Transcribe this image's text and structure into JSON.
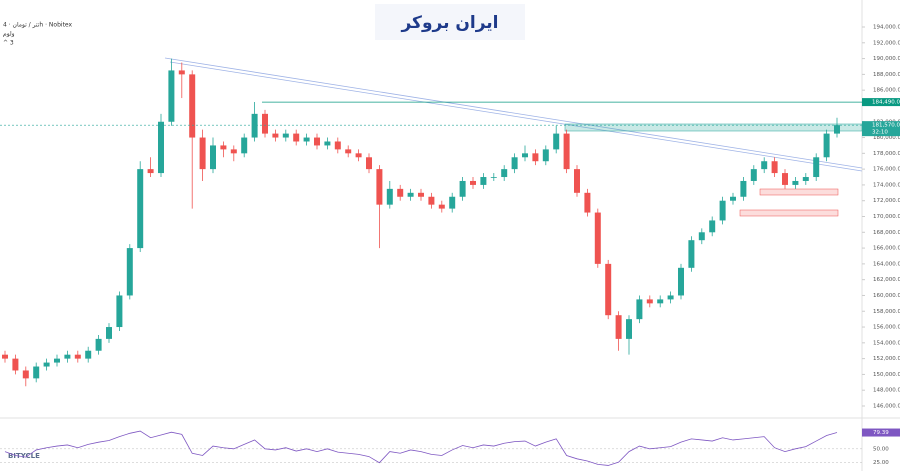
{
  "header": {
    "symbol": "تتر / تومان · 4h · Nobitex",
    "line2": "ولوم",
    "line3": "^ 3"
  },
  "watermark": "ایران بروکر",
  "footer_logo": "BITYCLE",
  "chart_data": {
    "type": "candlestick",
    "up_color": "#26a69a",
    "down_color": "#ef5350",
    "open": [
      152500,
      152000,
      150500,
      149500,
      151000,
      151500,
      152000,
      152500,
      152000,
      153000,
      154500,
      156000,
      160000,
      166000,
      176000,
      175500,
      182000,
      188500,
      188000,
      180000,
      176000,
      179000,
      178500,
      178000,
      180000,
      183000,
      180500,
      180000,
      180500,
      179500,
      180000,
      179000,
      179500,
      178500,
      178000,
      177500,
      176000,
      171500,
      173500,
      172500,
      173000,
      172500,
      171500,
      171000,
      172500,
      174500,
      174000,
      175000,
      175000,
      176000,
      177500,
      178000,
      177000,
      178500,
      180500,
      176000,
      173000,
      170500,
      164000,
      157500,
      154500,
      157000,
      159500,
      159000,
      159500,
      160000,
      163500,
      167000,
      168000,
      169500,
      172000,
      172500,
      174500,
      176000,
      177000,
      175500,
      174000,
      174500,
      175000,
      177500,
      180500
    ],
    "high": [
      153000,
      152500,
      151000,
      151500,
      152000,
      152500,
      153000,
      153000,
      153500,
      155000,
      156500,
      160500,
      166500,
      177000,
      177500,
      183000,
      190000,
      189500,
      188500,
      181000,
      180000,
      179500,
      179000,
      180500,
      184500,
      183500,
      181000,
      181000,
      181000,
      180500,
      180500,
      180000,
      180000,
      179000,
      178500,
      178000,
      176500,
      174500,
      174000,
      173500,
      173500,
      173000,
      172000,
      173000,
      175000,
      175000,
      175500,
      175500,
      176500,
      178000,
      179000,
      178500,
      179000,
      181500,
      181000,
      176500,
      173500,
      171000,
      164500,
      158000,
      157500,
      160000,
      160000,
      160000,
      160500,
      164000,
      167500,
      168500,
      170000,
      172500,
      173000,
      175000,
      176500,
      177500,
      177500,
      176000,
      175000,
      175500,
      178000,
      181000,
      182500
    ],
    "low": [
      151500,
      150000,
      148500,
      149000,
      150500,
      151000,
      151500,
      151500,
      151500,
      152500,
      154000,
      155500,
      159500,
      165500,
      175000,
      175000,
      181500,
      185000,
      171000,
      174500,
      175500,
      177500,
      177000,
      177500,
      179500,
      180000,
      179500,
      179500,
      179000,
      179000,
      178500,
      178500,
      178000,
      177500,
      177000,
      175500,
      166000,
      171000,
      172000,
      172000,
      172000,
      171000,
      170500,
      170500,
      172000,
      173500,
      173500,
      174500,
      174500,
      175500,
      177000,
      176500,
      176500,
      178000,
      175500,
      172500,
      170000,
      163500,
      157000,
      153000,
      152500,
      156500,
      158500,
      158500,
      159000,
      159500,
      163000,
      166500,
      167500,
      169000,
      171500,
      172000,
      174000,
      175500,
      175000,
      173500,
      173500,
      174000,
      174500,
      177000,
      180000
    ],
    "close": [
      152000,
      150500,
      149500,
      151000,
      151500,
      152000,
      152500,
      152000,
      153000,
      154500,
      156000,
      160000,
      166000,
      176000,
      175500,
      182000,
      188500,
      188000,
      180000,
      176000,
      179000,
      178500,
      178000,
      180000,
      183000,
      180500,
      180000,
      180500,
      179500,
      180000,
      179000,
      179500,
      178500,
      178000,
      177500,
      176000,
      171500,
      173500,
      172500,
      173000,
      172500,
      171500,
      171000,
      172500,
      174500,
      174000,
      175000,
      175000,
      176000,
      177500,
      178000,
      177000,
      178500,
      180500,
      176000,
      173000,
      170500,
      164000,
      157500,
      154500,
      157000,
      159500,
      159000,
      159500,
      160000,
      163500,
      167000,
      168000,
      169500,
      172000,
      172500,
      174500,
      176000,
      177000,
      175500,
      174000,
      174500,
      175000,
      177500,
      180500,
      181570
    ],
    "ylim": [
      146000,
      194000
    ],
    "yticks": [
      {
        "value": 194000,
        "label": "194,000.00"
      },
      {
        "value": 192000,
        "label": "192,000.00"
      },
      {
        "value": 190000,
        "label": "190,000.00"
      },
      {
        "value": 188000,
        "label": "188,000.00"
      },
      {
        "value": 186000,
        "label": "186,000.00"
      },
      {
        "value": 182000,
        "label": "182,000.00"
      },
      {
        "value": 180000,
        "label": "180,000.00"
      },
      {
        "value": 178000,
        "label": "178,000.00"
      },
      {
        "value": 176000,
        "label": "176,000.00"
      },
      {
        "value": 174000,
        "label": "174,000.00"
      },
      {
        "value": 172000,
        "label": "172,000.00"
      },
      {
        "value": 170000,
        "label": "170,000.00"
      },
      {
        "value": 168000,
        "label": "168,000.00"
      },
      {
        "value": 166000,
        "label": "166,000.00"
      },
      {
        "value": 164000,
        "label": "164,000.00"
      },
      {
        "value": 162000,
        "label": "162,000.00"
      },
      {
        "value": 160000,
        "label": "160,000.00"
      },
      {
        "value": 158000,
        "label": "158,000.00"
      },
      {
        "value": 156000,
        "label": "156,000.00"
      },
      {
        "value": 154000,
        "label": "154,000.00"
      },
      {
        "value": 152000,
        "label": "152,000.00"
      },
      {
        "value": 150000,
        "label": "150,000.00"
      },
      {
        "value": 148000,
        "label": "148,000.00"
      },
      {
        "value": 146000,
        "label": "146,000.00"
      }
    ],
    "level": {
      "value": 184490,
      "label": "184,490.00",
      "color": "#089981"
    },
    "last_price": {
      "value": 181570,
      "label": "181,570.00",
      "countdown": "32:10",
      "color": "#26a69a"
    },
    "rsi": {
      "color": "#7e57c2",
      "ylim": [
        10,
        102
      ],
      "values": [
        45,
        38,
        35,
        48,
        52,
        55,
        57,
        52,
        58,
        62,
        65,
        72,
        78,
        82,
        70,
        75,
        80,
        76,
        42,
        38,
        55,
        52,
        50,
        58,
        66,
        50,
        48,
        52,
        46,
        50,
        45,
        50,
        44,
        42,
        40,
        36,
        25,
        45,
        42,
        48,
        45,
        40,
        38,
        48,
        56,
        52,
        57,
        55,
        60,
        63,
        64,
        55,
        62,
        68,
        38,
        32,
        28,
        22,
        20,
        26,
        45,
        55,
        50,
        52,
        54,
        62,
        68,
        66,
        64,
        70,
        66,
        68,
        70,
        72,
        52,
        45,
        50,
        54,
        64,
        74,
        79.39
      ],
      "yticks": [
        {
          "value": 50,
          "label": "50.00"
        },
        {
          "value": 25,
          "label": "25.00"
        }
      ],
      "last": {
        "value": 79.39,
        "label": "79.39"
      }
    }
  }
}
